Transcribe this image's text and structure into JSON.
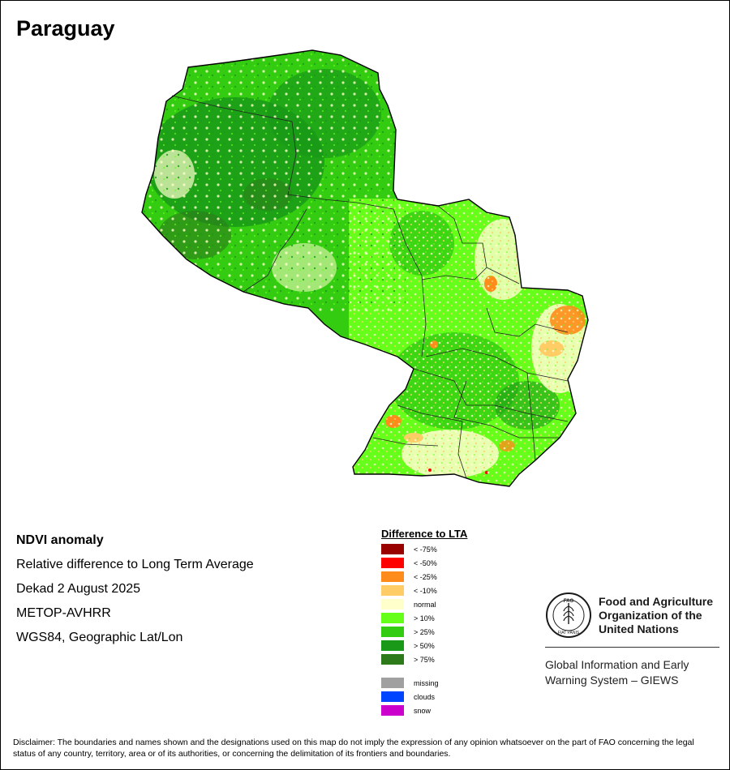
{
  "map": {
    "title": "Paraguay"
  },
  "info": {
    "heading": "NDVI anomaly",
    "lines": [
      "Relative difference to Long Term Average",
      "Dekad 2 August 2025",
      "METOP-AVHRR",
      "WGS84, Geographic Lat/Lon"
    ]
  },
  "legend": {
    "title": "Difference to LTA",
    "items": [
      {
        "label": "< -75%",
        "color": "#990000"
      },
      {
        "label": "< -50%",
        "color": "#ff0000"
      },
      {
        "label": "< -25%",
        "color": "#ff8c1a"
      },
      {
        "label": "< -10%",
        "color": "#ffcc66"
      },
      {
        "label": "normal",
        "color": "#ffffcc"
      },
      {
        "label": "> 10%",
        "color": "#66ff1a"
      },
      {
        "label": "> 25%",
        "color": "#33cc11"
      },
      {
        "label": "> 50%",
        "color": "#1a9919"
      },
      {
        "label": "> 75%",
        "color": "#2d7a1a"
      }
    ],
    "special": [
      {
        "label": "missing",
        "color": "#a0a0a0"
      },
      {
        "label": "clouds",
        "color": "#0044ff"
      },
      {
        "label": "snow",
        "color": "#cc00cc"
      }
    ]
  },
  "org": {
    "name": "Food and Agriculture Organization of the United Nations",
    "name_lines": [
      "Food and Agriculture",
      "Organization of the",
      "United Nations"
    ],
    "logo_text": "FAO",
    "logo_motto": "FIAT PANIS",
    "system_lines": [
      "Global Information and Early",
      "Warning System – GIEWS"
    ]
  },
  "disclaimer": "Disclaimer: The boundaries and names shown and the designations used on this map do not imply the expression of any opinion whatsoever on the part of FAO concerning the legal status of any country, territory, area or of its authorities, or concerning the delimitation of its frontiers and boundaries."
}
